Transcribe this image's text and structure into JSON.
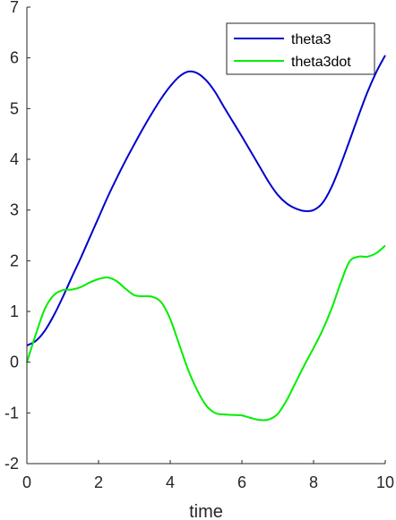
{
  "chart_data": {
    "type": "line",
    "title": "",
    "xlabel": "time",
    "ylabel": "",
    "xlim": [
      0,
      10
    ],
    "ylim": [
      -2,
      7
    ],
    "xticks": [
      0,
      2,
      4,
      6,
      8,
      10
    ],
    "yticks": [
      -2,
      -1,
      0,
      1,
      2,
      3,
      4,
      5,
      6,
      7
    ],
    "grid": false,
    "legend_position": "top-right",
    "series": [
      {
        "name": "theta3",
        "color": "#0000cc",
        "x": [
          0,
          0.25,
          0.5,
          0.75,
          1.0,
          1.25,
          1.5,
          1.75,
          2.0,
          2.25,
          2.5,
          2.75,
          3.0,
          3.25,
          3.5,
          3.75,
          4.0,
          4.25,
          4.5,
          4.75,
          5.0,
          5.25,
          5.5,
          5.75,
          6.0,
          6.25,
          6.5,
          6.75,
          7.0,
          7.25,
          7.5,
          7.75,
          8.0,
          8.25,
          8.5,
          8.75,
          9.0,
          9.25,
          9.5,
          9.75,
          10.0
        ],
        "y": [
          0.33,
          0.42,
          0.62,
          0.92,
          1.28,
          1.67,
          2.05,
          2.45,
          2.85,
          3.25,
          3.62,
          3.97,
          4.3,
          4.62,
          4.92,
          5.2,
          5.44,
          5.63,
          5.73,
          5.7,
          5.56,
          5.33,
          5.03,
          4.74,
          4.45,
          4.15,
          3.85,
          3.55,
          3.3,
          3.13,
          3.03,
          2.98,
          3.0,
          3.14,
          3.45,
          3.88,
          4.36,
          4.85,
          5.32,
          5.72,
          6.05
        ]
      },
      {
        "name": "theta3dot",
        "color": "#00ee00",
        "x": [
          0,
          0.25,
          0.5,
          0.75,
          1.0,
          1.25,
          1.5,
          1.75,
          2.0,
          2.25,
          2.5,
          2.75,
          3.0,
          3.25,
          3.5,
          3.75,
          4.0,
          4.25,
          4.5,
          4.75,
          5.0,
          5.25,
          5.5,
          5.75,
          6.0,
          6.25,
          6.5,
          6.75,
          7.0,
          7.25,
          7.5,
          7.75,
          8.0,
          8.25,
          8.5,
          8.75,
          9.0,
          9.25,
          9.5,
          9.75,
          10.0
        ],
        "y": [
          0.0,
          0.55,
          1.05,
          1.32,
          1.42,
          1.43,
          1.48,
          1.57,
          1.64,
          1.67,
          1.6,
          1.45,
          1.32,
          1.3,
          1.29,
          1.18,
          0.85,
          0.35,
          -0.15,
          -0.55,
          -0.85,
          -1.0,
          -1.03,
          -1.04,
          -1.05,
          -1.1,
          -1.14,
          -1.13,
          -1.02,
          -0.75,
          -0.4,
          -0.05,
          0.28,
          0.63,
          1.05,
          1.55,
          1.98,
          2.08,
          2.08,
          2.15,
          2.3
        ]
      }
    ]
  }
}
